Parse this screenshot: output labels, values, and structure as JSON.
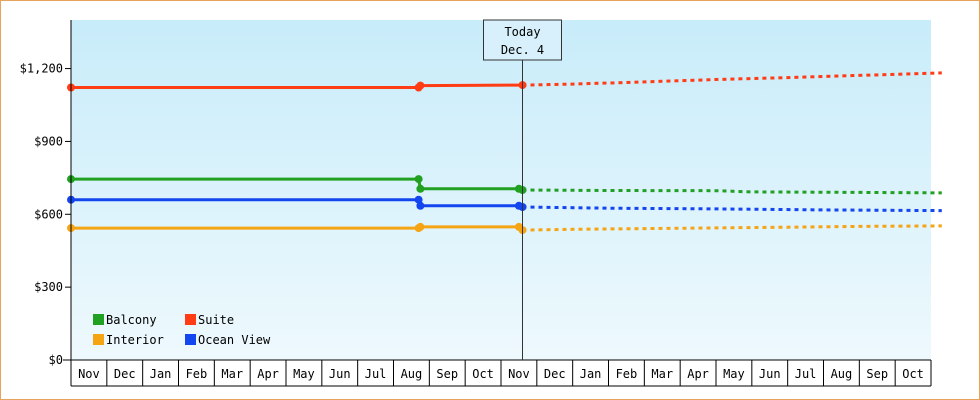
{
  "chart_data": {
    "type": "line",
    "title": "",
    "xlabel": "",
    "ylabel": "",
    "ylim": [
      0,
      1400
    ],
    "y_ticks": [
      {
        "value": 0,
        "label": "$0"
      },
      {
        "value": 300,
        "label": "$300"
      },
      {
        "value": 600,
        "label": "$600"
      },
      {
        "value": 900,
        "label": "$900"
      },
      {
        "value": 1200,
        "label": "$1,200"
      }
    ],
    "x_ticks": [
      "Nov",
      "Dec",
      "Jan",
      "Feb",
      "Mar",
      "Apr",
      "May",
      "Jun",
      "Jul",
      "Aug",
      "Sep",
      "Oct",
      "Nov",
      "Dec",
      "Jan",
      "Feb",
      "Mar",
      "Apr",
      "May",
      "Jun",
      "Jul",
      "Aug",
      "Sep",
      "Oct"
    ],
    "today_index": 12.6,
    "today_label": [
      "Today",
      "Dec. 4"
    ],
    "legend_position": "bottom-left",
    "grid": false,
    "series": [
      {
        "name": "Balcony",
        "color": "#22a022",
        "actual": [
          [
            0,
            745
          ],
          [
            9.7,
            745
          ],
          [
            9.75,
            705
          ],
          [
            12.5,
            705
          ],
          [
            12.6,
            700
          ]
        ],
        "forecast": [
          [
            12.6,
            700
          ],
          [
            15,
            698
          ],
          [
            18,
            697
          ],
          [
            19,
            692
          ],
          [
            22,
            690
          ],
          [
            24.3,
            688
          ]
        ]
      },
      {
        "name": "Suite",
        "color": "#ff3c14",
        "actual": [
          [
            0,
            1122
          ],
          [
            9.7,
            1122
          ],
          [
            9.75,
            1130
          ],
          [
            12.6,
            1132
          ]
        ],
        "forecast": [
          [
            12.6,
            1132
          ],
          [
            14,
            1136
          ],
          [
            16,
            1145
          ],
          [
            18,
            1155
          ],
          [
            20,
            1163
          ],
          [
            22,
            1172
          ],
          [
            24.3,
            1182
          ]
        ]
      },
      {
        "name": "Interior",
        "color": "#f5a514",
        "actual": [
          [
            0,
            543
          ],
          [
            9.7,
            543
          ],
          [
            9.75,
            548
          ],
          [
            12.5,
            548
          ],
          [
            12.6,
            535
          ]
        ],
        "forecast": [
          [
            12.6,
            535
          ],
          [
            14,
            538
          ],
          [
            16,
            541
          ],
          [
            18,
            544
          ],
          [
            20,
            547
          ],
          [
            22,
            550
          ],
          [
            24.3,
            552
          ]
        ]
      },
      {
        "name": "Ocean View",
        "color": "#1446f0",
        "actual": [
          [
            0,
            660
          ],
          [
            9.7,
            660
          ],
          [
            9.75,
            635
          ],
          [
            12.5,
            635
          ],
          [
            12.6,
            630
          ]
        ],
        "forecast": [
          [
            12.6,
            630
          ],
          [
            15,
            625
          ],
          [
            18,
            622
          ],
          [
            21,
            618
          ],
          [
            24.3,
            615
          ]
        ]
      }
    ]
  }
}
